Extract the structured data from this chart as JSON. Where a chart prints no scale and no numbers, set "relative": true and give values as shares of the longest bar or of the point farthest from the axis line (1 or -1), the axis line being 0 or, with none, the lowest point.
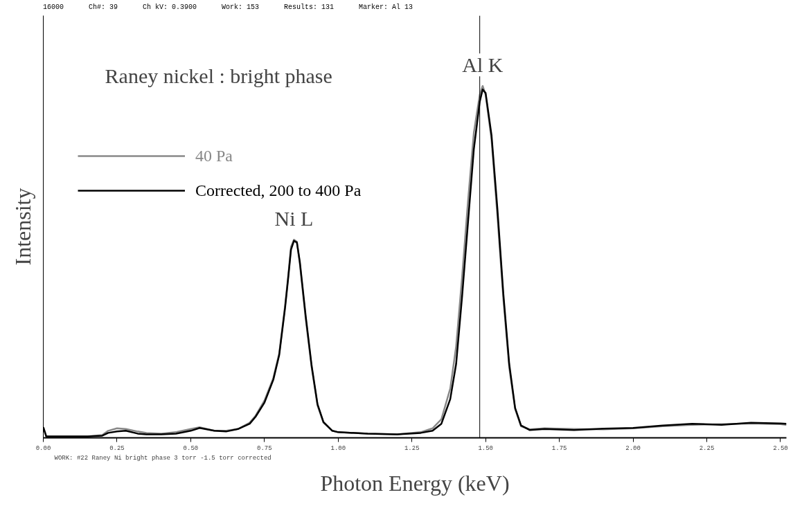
{
  "chart_data": {
    "type": "line",
    "relative": true,
    "title": "Raney nickel : bright phase",
    "xlabel": "Photon Energy (keV)",
    "ylabel": "Intensity",
    "xlim": [
      0,
      2.52
    ],
    "xticks": [
      {
        "value": 0,
        "label": "0.00"
      },
      {
        "value": 0.25,
        "label": "0.25"
      },
      {
        "value": 0.5,
        "label": "0.50"
      },
      {
        "value": 0.75,
        "label": "0.75"
      },
      {
        "value": 1,
        "label": "1.00"
      },
      {
        "value": 1.25,
        "label": "1.25"
      },
      {
        "value": 1.5,
        "label": "1.50"
      },
      {
        "value": 1.75,
        "label": "1.75"
      },
      {
        "value": 2,
        "label": "2.00"
      },
      {
        "value": 2.25,
        "label": "2.25"
      },
      {
        "value": 2.5,
        "label": "2.50"
      }
    ],
    "x": [
      0,
      0.01,
      0.05,
      0.15,
      0.2,
      0.22,
      0.25,
      0.28,
      0.32,
      0.35,
      0.4,
      0.45,
      0.5,
      0.53,
      0.58,
      0.62,
      0.66,
      0.7,
      0.72,
      0.75,
      0.78,
      0.8,
      0.82,
      0.83,
      0.84,
      0.85,
      0.86,
      0.87,
      0.89,
      0.91,
      0.93,
      0.95,
      0.98,
      1.0,
      1.1,
      1.2,
      1.28,
      1.32,
      1.35,
      1.38,
      1.4,
      1.42,
      1.44,
      1.46,
      1.48,
      1.49,
      1.5,
      1.52,
      1.54,
      1.56,
      1.58,
      1.6,
      1.62,
      1.65,
      1.7,
      1.8,
      1.9,
      2.0,
      2.1,
      2.2,
      2.3,
      2.4,
      2.5,
      2.52
    ],
    "series": [
      {
        "name": "40 Pa",
        "color": "#888888",
        "values": [
          0.03,
          0.004,
          0.004,
          0.004,
          0.008,
          0.02,
          0.027,
          0.025,
          0.018,
          0.014,
          0.012,
          0.016,
          0.025,
          0.03,
          0.02,
          0.02,
          0.025,
          0.043,
          0.063,
          0.106,
          0.17,
          0.24,
          0.376,
          0.455,
          0.543,
          0.563,
          0.557,
          0.494,
          0.337,
          0.2,
          0.092,
          0.043,
          0.02,
          0.016,
          0.012,
          0.01,
          0.016,
          0.027,
          0.053,
          0.14,
          0.26,
          0.455,
          0.67,
          0.867,
          0.975,
          1.0,
          0.975,
          0.847,
          0.63,
          0.396,
          0.2,
          0.082,
          0.033,
          0.024,
          0.027,
          0.025,
          0.024,
          0.027,
          0.033,
          0.037,
          0.039,
          0.041,
          0.039,
          0.037
        ]
      },
      {
        "name": "Corrected, 200 to 400 Pa",
        "color": "#000000",
        "values": [
          0.03,
          0.004,
          0.004,
          0.004,
          0.006,
          0.014,
          0.018,
          0.02,
          0.012,
          0.01,
          0.01,
          0.012,
          0.02,
          0.028,
          0.02,
          0.018,
          0.025,
          0.04,
          0.06,
          0.1,
          0.165,
          0.235,
          0.37,
          0.45,
          0.535,
          0.56,
          0.555,
          0.5,
          0.345,
          0.205,
          0.095,
          0.045,
          0.02,
          0.016,
          0.012,
          0.01,
          0.014,
          0.02,
          0.04,
          0.11,
          0.21,
          0.4,
          0.61,
          0.82,
          0.955,
          0.99,
          0.98,
          0.86,
          0.65,
          0.41,
          0.21,
          0.085,
          0.035,
          0.022,
          0.025,
          0.022,
          0.026,
          0.028,
          0.035,
          0.04,
          0.037,
          0.043,
          0.041,
          0.04
        ]
      }
    ],
    "legend": "top left",
    "grid": false,
    "marker": "none",
    "line_style": "solid",
    "ref_lines": [
      {
        "axis": "x",
        "value": 1.48,
        "color": "#000000"
      }
    ],
    "annotations": [
      {
        "text": "Ni L",
        "x": 0.85,
        "y": 0.563
      },
      {
        "text": "Al K",
        "x": 1.49,
        "y": 1.0
      },
      "16000",
      "Ch#: 39",
      "Ch kV: 0.3900",
      "Work: 153",
      "Results: 131",
      "Marker: Al 13",
      "WORK: #22 Raney Ni bright phase 3 torr -1.5 torr corrected"
    ]
  }
}
